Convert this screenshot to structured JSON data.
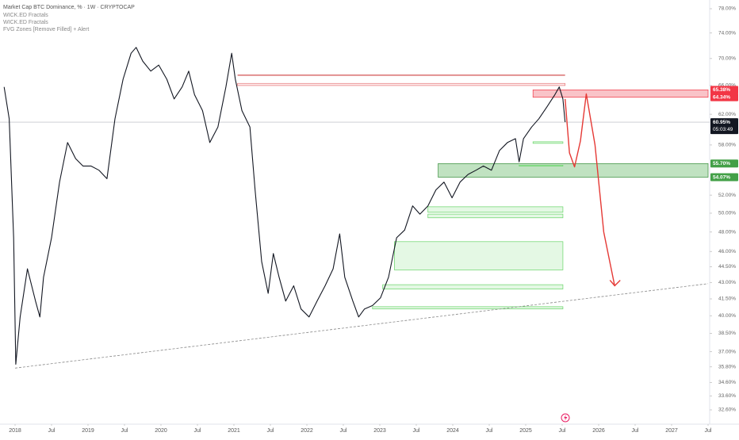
{
  "chart_data": {
    "type": "line",
    "title": "Market Cap BTC Dominance, % · 1W · CRYPTOCAP",
    "indicators": [
      "WICK.ED Fractals",
      "WICK.ED Fractals",
      "FVG Zones [Remove Filled] + Alert"
    ],
    "color": "#131722",
    "log_scale": true,
    "x": [
      2017.85,
      2017.92,
      2017.98,
      2018.01,
      2018.07,
      2018.17,
      2018.28,
      2018.34,
      2018.39,
      2018.5,
      2018.61,
      2018.72,
      2018.83,
      2018.93,
      2019.04,
      2019.15,
      2019.26,
      2019.37,
      2019.48,
      2019.59,
      2019.66,
      2019.75,
      2019.86,
      2019.97,
      2020.08,
      2020.18,
      2020.29,
      2020.38,
      2020.46,
      2020.57,
      2020.67,
      2020.78,
      2020.89,
      2020.97,
      2021.02,
      2021.11,
      2021.22,
      2021.29,
      2021.38,
      2021.47,
      2021.54,
      2021.62,
      2021.71,
      2021.82,
      2021.92,
      2022.03,
      2022.14,
      2022.25,
      2022.36,
      2022.45,
      2022.52,
      2022.63,
      2022.71,
      2022.79,
      2022.9,
      2023.01,
      2023.12,
      2023.23,
      2023.34,
      2023.45,
      2023.55,
      2023.66,
      2023.77,
      2023.88,
      2023.99,
      2024.1,
      2024.21,
      2024.32,
      2024.42,
      2024.53,
      2024.64,
      2024.75,
      2024.86,
      2024.91,
      2024.97,
      2025.08,
      2025.18,
      2025.29,
      2025.4,
      2025.46,
      2025.51,
      2025.54
    ],
    "values": [
      65.8,
      61.4,
      47.4,
      36.0,
      39.9,
      44.3,
      41.3,
      39.9,
      43.5,
      47.4,
      53.5,
      58.3,
      56.3,
      55.4,
      55.4,
      54.9,
      53.9,
      61.4,
      66.9,
      70.8,
      71.7,
      69.6,
      68.1,
      69.0,
      66.9,
      64.1,
      65.8,
      68.1,
      64.7,
      62.5,
      58.3,
      60.3,
      65.8,
      70.8,
      66.9,
      62.5,
      60.3,
      52.6,
      45.0,
      42.0,
      45.8,
      43.5,
      41.3,
      42.7,
      40.6,
      39.9,
      41.3,
      42.7,
      44.3,
      47.8,
      43.5,
      41.3,
      39.9,
      40.6,
      40.9,
      41.6,
      43.5,
      47.4,
      48.2,
      50.8,
      49.9,
      50.8,
      52.6,
      53.5,
      51.7,
      53.5,
      54.4,
      54.9,
      55.4,
      54.9,
      57.3,
      58.3,
      58.8,
      55.9,
      58.8,
      60.3,
      61.4,
      63.0,
      64.7,
      65.8,
      64.1,
      60.95
    ],
    "xlim": [
      2018,
      2027.5
    ],
    "xticks": [
      {
        "value": 2018,
        "label": "2018"
      },
      {
        "value": 2018.5,
        "label": "Jul"
      },
      {
        "value": 2019,
        "label": "2019"
      },
      {
        "value": 2019.5,
        "label": "Jul"
      },
      {
        "value": 2020,
        "label": "2020"
      },
      {
        "value": 2020.5,
        "label": "Jul"
      },
      {
        "value": 2021,
        "label": "2021"
      },
      {
        "value": 2021.5,
        "label": "Jul"
      },
      {
        "value": 2022,
        "label": "2022"
      },
      {
        "value": 2022.5,
        "label": "Jul"
      },
      {
        "value": 2023,
        "label": "2023"
      },
      {
        "value": 2023.5,
        "label": "Jul"
      },
      {
        "value": 2024,
        "label": "2024"
      },
      {
        "value": 2024.5,
        "label": "Jul"
      },
      {
        "value": 2025,
        "label": "2025"
      },
      {
        "value": 2025.5,
        "label": "Jul"
      },
      {
        "value": 2026,
        "label": "2026"
      },
      {
        "value": 2026.5,
        "label": "Jul"
      },
      {
        "value": 2027,
        "label": "2027"
      },
      {
        "value": 2027.5,
        "label": "Jul"
      }
    ],
    "ylim": [
      32.6,
      78
    ],
    "yticks": [
      {
        "value": 78,
        "label": "78.00%"
      },
      {
        "value": 74,
        "label": "74.00%"
      },
      {
        "value": 70,
        "label": "70.00%"
      },
      {
        "value": 66,
        "label": "66.00%"
      },
      {
        "value": 62,
        "label": "62.00%"
      },
      {
        "value": 58,
        "label": "58.00%"
      },
      {
        "value": 52,
        "label": "52.00%"
      },
      {
        "value": 50,
        "label": "50.00%"
      },
      {
        "value": 48,
        "label": "48.00%"
      },
      {
        "value": 46,
        "label": "46.00%"
      },
      {
        "value": 44.5,
        "label": "44.50%"
      },
      {
        "value": 43,
        "label": "43.00%"
      },
      {
        "value": 41.5,
        "label": "41.50%"
      },
      {
        "value": 40,
        "label": "40.00%"
      },
      {
        "value": 38.5,
        "label": "38.50%"
      },
      {
        "value": 37,
        "label": "37.00%"
      },
      {
        "value": 35.8,
        "label": "35.80%"
      },
      {
        "value": 34.6,
        "label": "34.60%"
      },
      {
        "value": 33.6,
        "label": "33.60%"
      },
      {
        "value": 32.6,
        "label": "32.60%"
      }
    ],
    "zones": [
      {
        "from": 2025.1,
        "to": 2027.5,
        "low": 64.34,
        "high": 65.38,
        "color": "#f7a9b0",
        "border": "#f23645"
      },
      {
        "from": 2023.8,
        "to": 2027.5,
        "low": 54.07,
        "high": 55.7,
        "color": "#a5d6a7",
        "border": "#388e3c"
      },
      {
        "from": 2025.1,
        "to": 2025.51,
        "low": 58.2,
        "high": 58.4,
        "color": "#d8f5d8",
        "border": "#66d466"
      },
      {
        "from": 2024.91,
        "to": 2025.51,
        "low": 55.4,
        "high": 55.5,
        "color": "#d8f5d8",
        "border": "#66d466"
      },
      {
        "from": 2023.66,
        "to": 2025.51,
        "low": 50.1,
        "high": 50.7,
        "color": "#d8f5d8",
        "border": "#66d466"
      },
      {
        "from": 2023.66,
        "to": 2025.51,
        "low": 49.5,
        "high": 49.9,
        "color": "#d8f5d8",
        "border": "#66d466"
      },
      {
        "from": 2023.2,
        "to": 2025.51,
        "low": 44.2,
        "high": 47.0,
        "color": "#d8f5d8",
        "border": "#66d466"
      },
      {
        "from": 2023.04,
        "to": 2025.51,
        "low": 42.4,
        "high": 42.8,
        "color": "#d8f5d8",
        "border": "#66d466"
      },
      {
        "from": 2022.9,
        "to": 2025.51,
        "low": 40.6,
        "high": 40.8,
        "color": "#d8f5d8",
        "border": "#66d466"
      },
      {
        "from": 2021.05,
        "to": 2025.54,
        "low": 66.0,
        "high": 66.3,
        "color": "#fde8ea",
        "border": "#e57373"
      }
    ],
    "levels": [
      {
        "from": 2021.05,
        "to": 2025.54,
        "value": 67.5,
        "color": "#c62828"
      }
    ],
    "current_price": 60.95,
    "trendline": {
      "x": [
        2018.0,
        2027.5
      ],
      "values": [
        35.7,
        42.9
      ],
      "color": "#888888"
    },
    "projection": {
      "x": [
        2025.54,
        2025.6,
        2025.67,
        2025.75,
        2025.83,
        2025.95,
        2026.07,
        2026.22
      ],
      "values": [
        64.1,
        57,
        55.3,
        58.5,
        64.8,
        58,
        48,
        42.7
      ],
      "color": "#e53935"
    },
    "price_labels": [
      {
        "value": 65.38,
        "label": "65.38%",
        "color": "#f23645"
      },
      {
        "value": 64.34,
        "label": "64.34%",
        "color": "#f23645"
      },
      {
        "value": 60.95,
        "label": "60.95%",
        "color": "#131722",
        "countdown": "05:03:49"
      },
      {
        "value": 55.7,
        "label": "55.70%",
        "color": "#43a047"
      },
      {
        "value": 54.07,
        "label": "54.07%",
        "color": "#43a047"
      }
    ]
  }
}
